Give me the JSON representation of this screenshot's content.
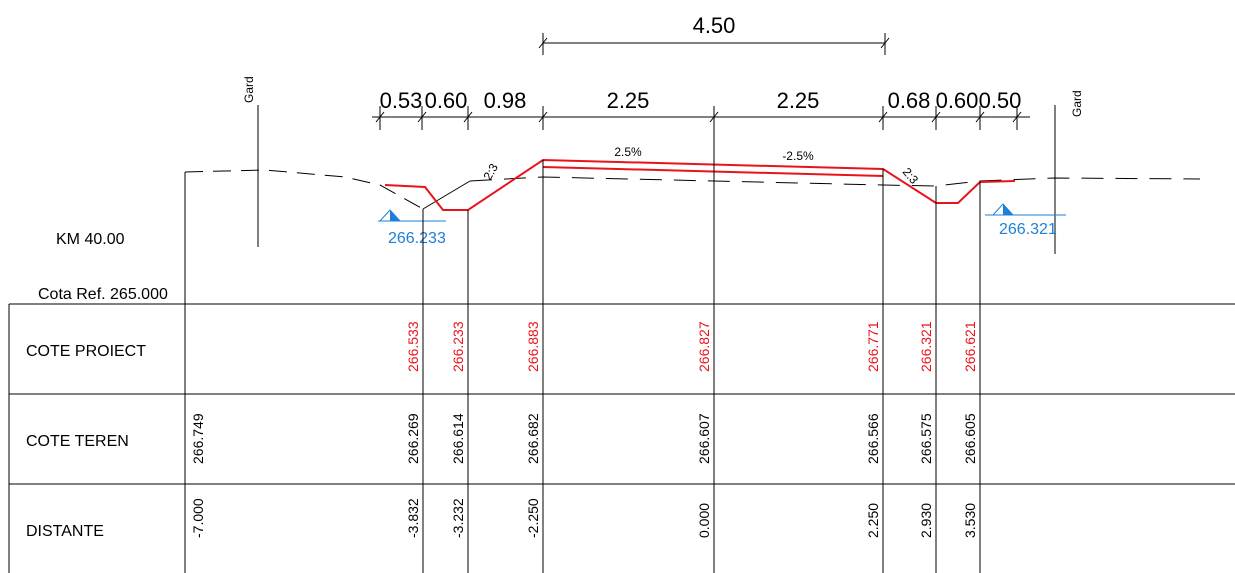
{
  "top_dimension": "4.50",
  "segment_dims": [
    "0.53",
    "0.60",
    "0.98",
    "2.25",
    "2.25",
    "0.68",
    "0.60",
    "0.50"
  ],
  "fence_left": "Gard",
  "fence_right": "Gard",
  "slope_left": "2:3",
  "slope_right": "2:3",
  "grade_left": "2.5%",
  "grade_right": "-2.5%",
  "station": "KM 40.00",
  "reference": "Cota Ref. 265.000",
  "water_left": "266.233",
  "water_right": "266.321",
  "rows": {
    "proiect": "COTE PROIECT",
    "teren": "COTE TEREN",
    "distante": "DISTANTE"
  },
  "cote_proiect": [
    "266.533",
    "266.233",
    "266.883",
    "266.827",
    "266.771",
    "266.321",
    "266.621"
  ],
  "cote_teren": [
    "266.749",
    "266.269",
    "266.614",
    "266.682",
    "266.607",
    "266.566",
    "266.575",
    "266.605"
  ],
  "distante": [
    "-7.000",
    "-3.832",
    "-3.232",
    "-2.250",
    "0.000",
    "2.250",
    "2.930",
    "3.530"
  ],
  "colors": {
    "design_line": "#e8141c",
    "water_marker": "#1e7fd8",
    "lines": "#000000"
  }
}
